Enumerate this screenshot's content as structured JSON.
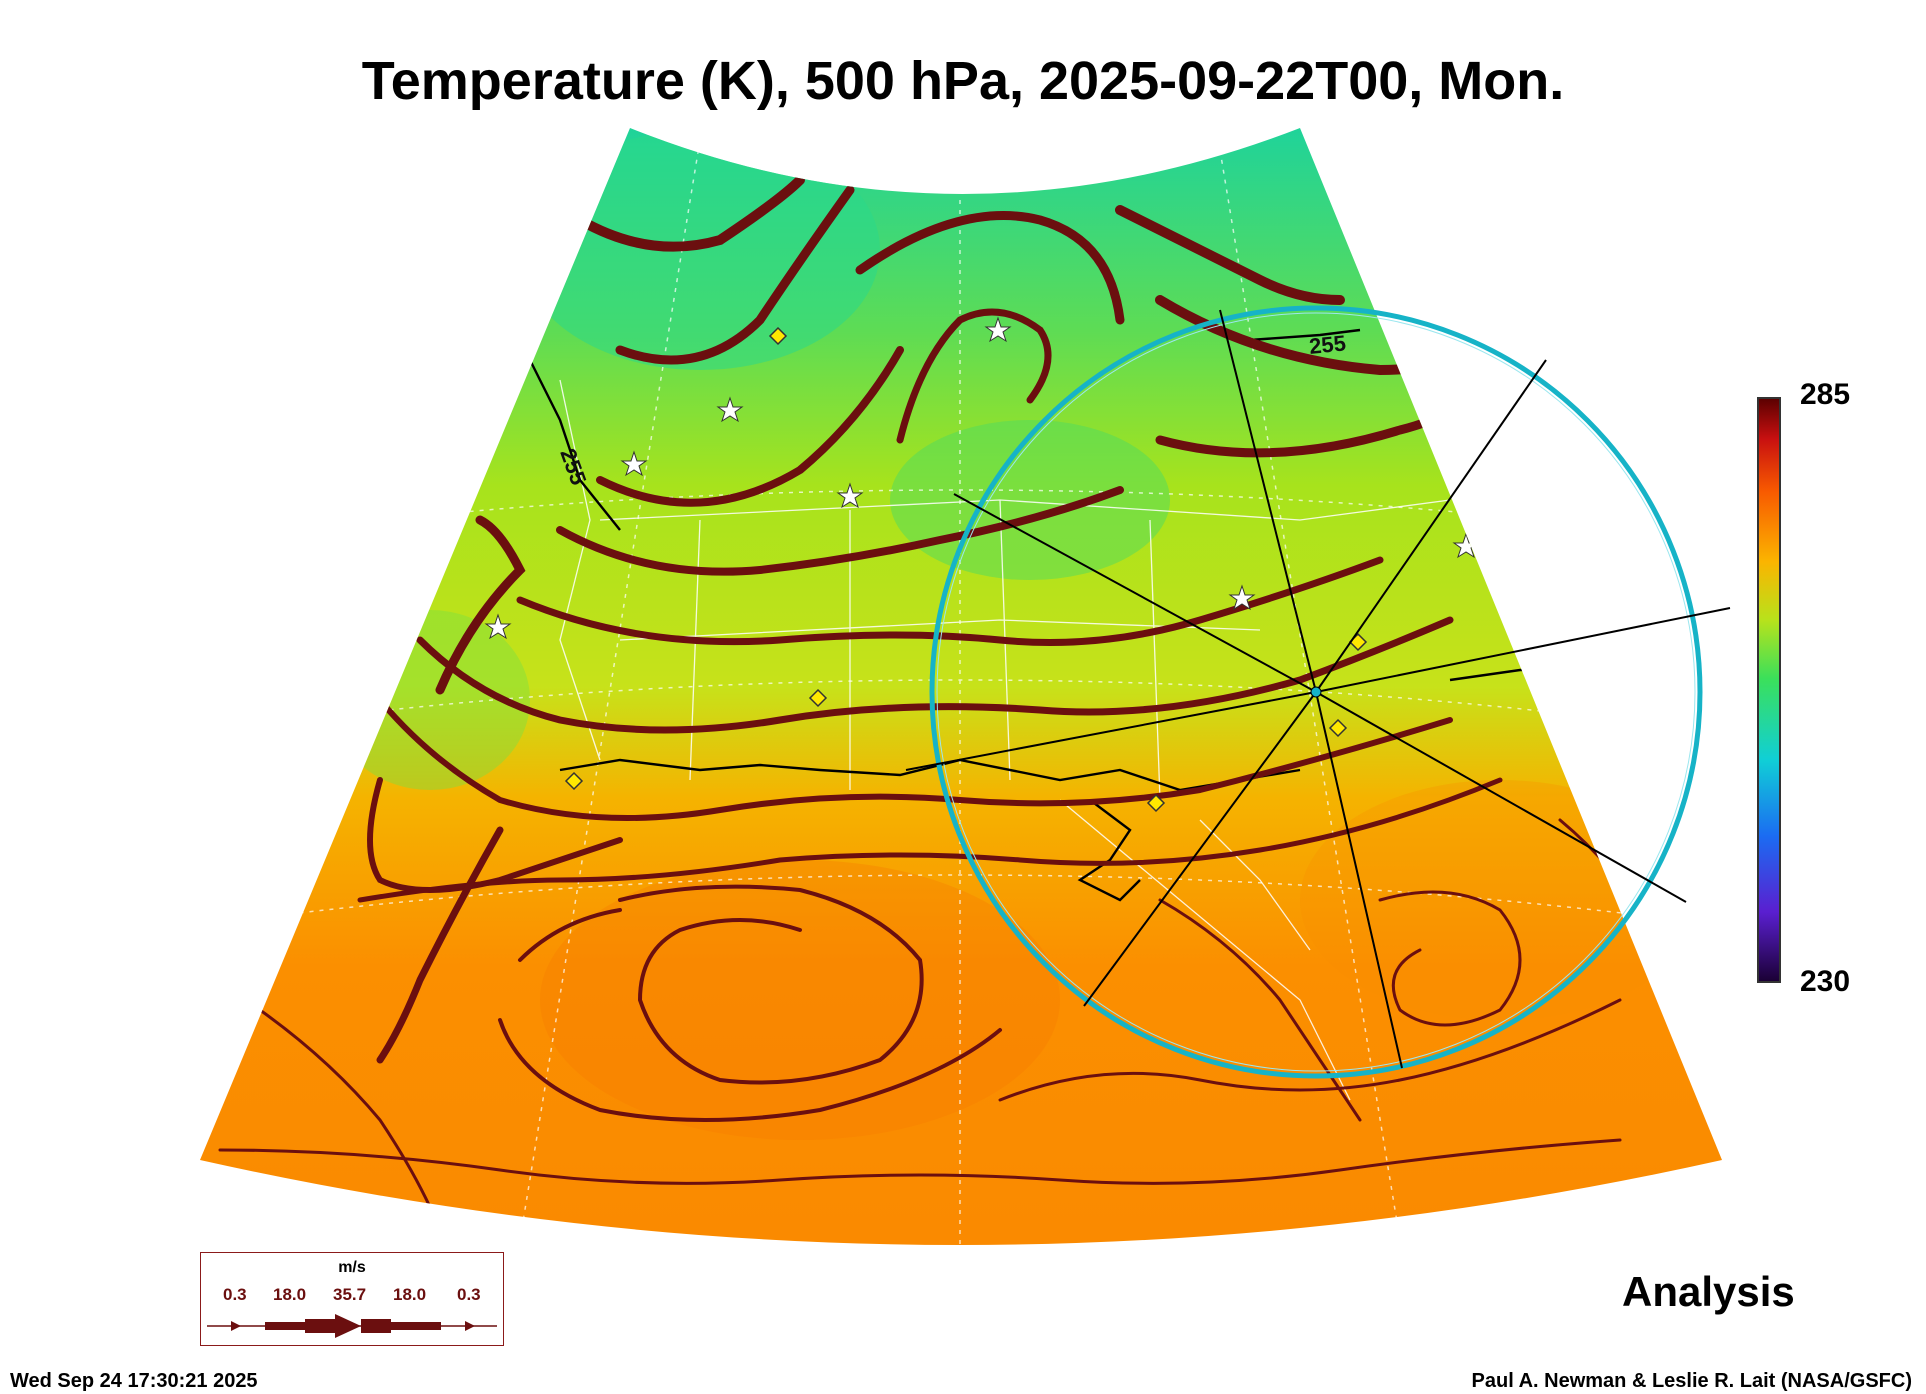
{
  "title": "Temperature (K), 500 hPa, 2025-09-22T00, Mon.",
  "label": "Analysis",
  "timestamp": "Wed Sep 24 17:30:21 2025",
  "credit": "Paul A. Newman & Leslie R. Lait (NASA/GSFC)",
  "colorbar": {
    "max": "285",
    "min": "230"
  },
  "contour_labels": [
    "255",
    "255"
  ],
  "legend": {
    "unit": "m/s",
    "values": [
      "0.3",
      "18.0",
      "35.7",
      "18.0",
      "0.3"
    ]
  },
  "colors": {
    "streamline": "#6b0f0f",
    "range_ring": "#16b3c7",
    "marker_diamond": "#ffe800",
    "cold": "#1fd39a",
    "mid": "#a7e31c",
    "warm": "#fb8c00"
  }
}
